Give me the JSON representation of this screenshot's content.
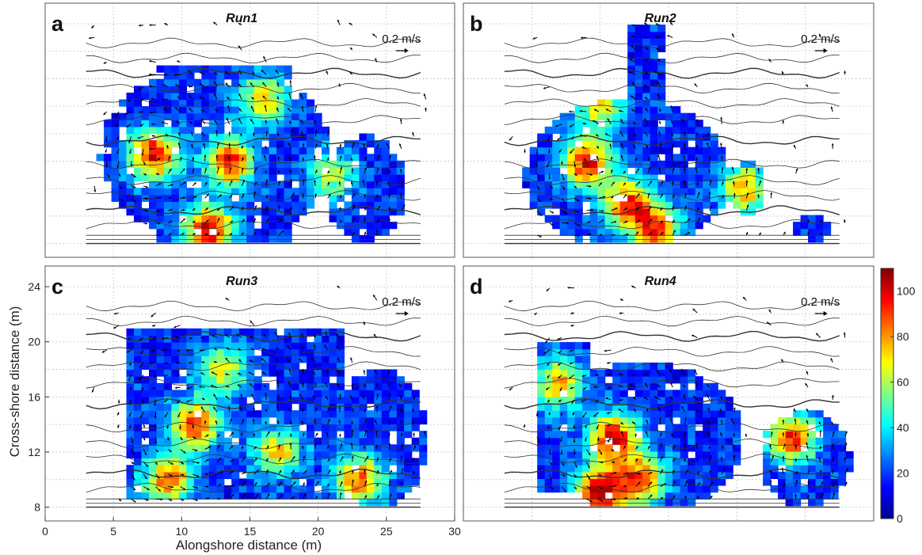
{
  "figure": {
    "xlabel": "Alongshore distance (m)",
    "ylabel": "Cross-shore distance (m)"
  },
  "panels": [
    {
      "letter": "a",
      "title": "Run1",
      "scale_label": "0.2 m/s"
    },
    {
      "letter": "b",
      "title": "Run2",
      "scale_label": "0.2 m/s"
    },
    {
      "letter": "c",
      "title": "Run3",
      "scale_label": "0.2 m/s"
    },
    {
      "letter": "d",
      "title": "Run4",
      "scale_label": "0.2 m/s"
    }
  ],
  "chart_data": {
    "type": "heatmap",
    "x_ticks": [
      0,
      5,
      10,
      15,
      20,
      25,
      30
    ],
    "y_ticks": [
      8,
      12,
      16,
      20,
      24
    ],
    "xlim": [
      0,
      30
    ],
    "ylim": [
      7,
      25.5
    ],
    "xlabel": "Alongshore distance (m)",
    "ylabel": "Cross-shore distance (m)",
    "grid": true,
    "colorbar": {
      "min": 0,
      "max": 110,
      "ticks": [
        0,
        20,
        40,
        60,
        80,
        100
      ],
      "colormap": "jet",
      "stops": [
        "#00008f",
        "#0000ff",
        "#0080ff",
        "#00ffff",
        "#80ff80",
        "#ffff00",
        "#ff8000",
        "#ff0000",
        "#800000"
      ]
    },
    "panels": [
      {
        "letter": "a",
        "title": "Run1",
        "blobs": [
          {
            "x": 8,
            "y": 14.5,
            "v": 80
          },
          {
            "x": 13.5,
            "y": 14,
            "v": 75
          },
          {
            "x": 12,
            "y": 9,
            "v": 85
          },
          {
            "x": 16,
            "y": 18.5,
            "v": 55
          },
          {
            "x": 21,
            "y": 13,
            "v": 45
          }
        ]
      },
      {
        "letter": "b",
        "title": "Run2",
        "blobs": [
          {
            "x": 9,
            "y": 14,
            "v": 80
          },
          {
            "x": 12,
            "y": 11,
            "v": 70
          },
          {
            "x": 14,
            "y": 9,
            "v": 75
          },
          {
            "x": 10,
            "y": 18,
            "v": 50
          },
          {
            "x": 20.5,
            "y": 12,
            "v": 60
          }
        ]
      },
      {
        "letter": "c",
        "title": "Run3",
        "blobs": [
          {
            "x": 11,
            "y": 14,
            "v": 75
          },
          {
            "x": 9,
            "y": 10,
            "v": 70
          },
          {
            "x": 17,
            "y": 12,
            "v": 55
          },
          {
            "x": 23,
            "y": 10,
            "v": 70
          },
          {
            "x": 13,
            "y": 18,
            "v": 50
          }
        ]
      },
      {
        "letter": "d",
        "title": "Run4",
        "blobs": [
          {
            "x": 11,
            "y": 13,
            "v": 85
          },
          {
            "x": 10,
            "y": 9,
            "v": 90
          },
          {
            "x": 13,
            "y": 10,
            "v": 70
          },
          {
            "x": 24,
            "y": 13,
            "v": 75
          },
          {
            "x": 7,
            "y": 17,
            "v": 60
          }
        ]
      }
    ]
  }
}
